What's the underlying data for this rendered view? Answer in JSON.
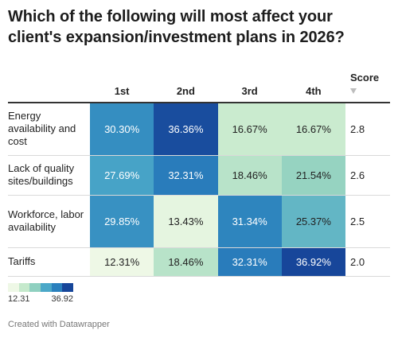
{
  "title": "Which of the following will most affect your client's expansion/investment plans in 2026?",
  "chart_data": {
    "type": "heatmap",
    "columns": [
      "1st",
      "2nd",
      "3rd",
      "4th"
    ],
    "score_header": "Score",
    "rows": [
      {
        "label": "Energy availability and cost",
        "values": [
          30.3,
          36.36,
          16.67,
          16.67
        ],
        "display": [
          "30.30%",
          "36.36%",
          "16.67%",
          "16.67%"
        ],
        "score": "2.8"
      },
      {
        "label": "Lack of quality sites/buildings",
        "values": [
          27.69,
          32.31,
          18.46,
          21.54
        ],
        "display": [
          "27.69%",
          "32.31%",
          "18.46%",
          "21.54%"
        ],
        "score": "2.6"
      },
      {
        "label": "Workforce, labor availability",
        "values": [
          29.85,
          13.43,
          31.34,
          25.37
        ],
        "display": [
          "29.85%",
          "13.43%",
          "31.34%",
          "25.37%"
        ],
        "score": "2.5"
      },
      {
        "label": "Tariffs",
        "values": [
          12.31,
          18.46,
          32.31,
          36.92
        ],
        "display": [
          "12.31%",
          "18.46%",
          "32.31%",
          "36.92%"
        ],
        "score": "2.0"
      }
    ],
    "color_scale": {
      "min": 12.31,
      "max": 36.92,
      "min_label": "12.31",
      "max_label": "36.92",
      "colors": [
        "#eef8e6",
        "#c5e9cc",
        "#8fd0c0",
        "#4ba8c8",
        "#2a80bd",
        "#17469a"
      ]
    }
  },
  "footer": "Created with Datawrapper"
}
